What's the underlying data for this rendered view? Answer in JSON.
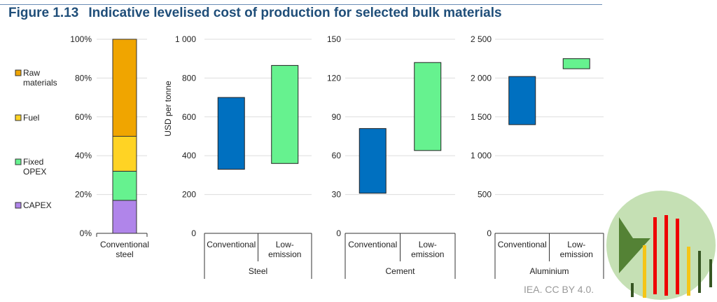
{
  "title": {
    "number": "Figure 1.13",
    "text": "Indicative levelised cost of production for selected bulk materials"
  },
  "credit": "IEA. CC BY 4.0.",
  "colors": {
    "capex": "#b085ea",
    "opex": "#66f28f",
    "fuel": "#ffd324",
    "raw": "#f0a500",
    "conventional": "#0070c0",
    "low": "#66f28f"
  },
  "chart_data": [
    {
      "type": "bar",
      "stacked": true,
      "categories": [
        "Conventional steel"
      ],
      "ylim": [
        0,
        100
      ],
      "yticks": [
        "0%",
        "20%",
        "40%",
        "60%",
        "80%",
        "100%"
      ],
      "legend": [
        "Raw materials",
        "Fuel",
        "Fixed OPEX",
        "CAPEX"
      ],
      "series": [
        {
          "name": "CAPEX",
          "values": [
            17
          ]
        },
        {
          "name": "Fixed OPEX",
          "values": [
            15
          ]
        },
        {
          "name": "Fuel",
          "values": [
            18
          ]
        },
        {
          "name": "Raw materials",
          "values": [
            50
          ]
        }
      ]
    },
    {
      "type": "bar",
      "floating": true,
      "group": "Steel",
      "ylabel": "USD per tonne",
      "ylim": [
        0,
        1000
      ],
      "yticks": [
        "0",
        "200",
        "400",
        "600",
        "800",
        "1 000"
      ],
      "categories": [
        "Conventional",
        "Low-emission"
      ],
      "ranges": [
        [
          330,
          700
        ],
        [
          360,
          865
        ]
      ]
    },
    {
      "type": "bar",
      "floating": true,
      "group": "Cement",
      "ylim": [
        0,
        150
      ],
      "yticks": [
        "0",
        "30",
        "60",
        "90",
        "120",
        "150"
      ],
      "categories": [
        "Conventional",
        "Low-emission"
      ],
      "ranges": [
        [
          31,
          81
        ],
        [
          64,
          132
        ]
      ]
    },
    {
      "type": "bar",
      "floating": true,
      "group": "Aluminium",
      "ylim": [
        0,
        2500
      ],
      "yticks": [
        "0",
        "500",
        "1 000",
        "1 500",
        "2 000",
        "2 500"
      ],
      "categories": [
        "Conventional",
        "Low-emission"
      ],
      "ranges": [
        [
          1400,
          2020
        ],
        [
          2120,
          2250
        ]
      ]
    }
  ]
}
